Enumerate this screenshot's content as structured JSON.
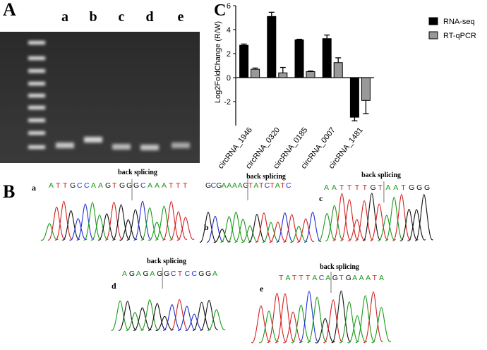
{
  "panels": {
    "gel": {
      "label": "A",
      "lanes": [
        "a",
        "b",
        "c",
        "d",
        "e"
      ]
    },
    "chromatograms": {
      "label": "B",
      "items": [
        {
          "label": "a",
          "annotation": "back splicing",
          "sequence": "ATTGCCAAGTGGGCAAATTT"
        },
        {
          "label": "b",
          "annotation": "back splicing",
          "sequence": "GCGAAAAGTATCTATC"
        },
        {
          "label": "c",
          "annotation": "back splicing",
          "sequence": "AATTTTGTAATGGG"
        },
        {
          "label": "d",
          "annotation": "back splicing",
          "sequence": "AGAGAGGCTCCGGA"
        },
        {
          "label": "e",
          "annotation": "back splicing",
          "sequence": "TATTTACAGTGAAATA"
        }
      ]
    }
  },
  "chart_data": {
    "type": "bar",
    "panel_label": "C",
    "ylabel": "Log2FoldChange (R/W)",
    "categories": [
      "circRNA_1946",
      "circRNA_0320",
      "circRNA_0185",
      "circRNA_0007",
      "circRNA_1481"
    ],
    "series": [
      {
        "name": "RNA-seq",
        "color": "#000000",
        "values": [
          2.7,
          5.1,
          3.15,
          3.25,
          -3.3
        ],
        "errors": [
          0.1,
          0.35,
          0.05,
          0.3,
          0.3
        ]
      },
      {
        "name": "RT-qPCR",
        "color": "#999999",
        "values": [
          0.7,
          0.4,
          0.5,
          1.25,
          -1.9
        ],
        "errors": [
          0.1,
          0.45,
          0.05,
          0.4,
          1.1
        ]
      }
    ],
    "ylim": [
      -4,
      6
    ],
    "yticks": [
      -2,
      0,
      2,
      4,
      6
    ],
    "legend": "upper right"
  }
}
